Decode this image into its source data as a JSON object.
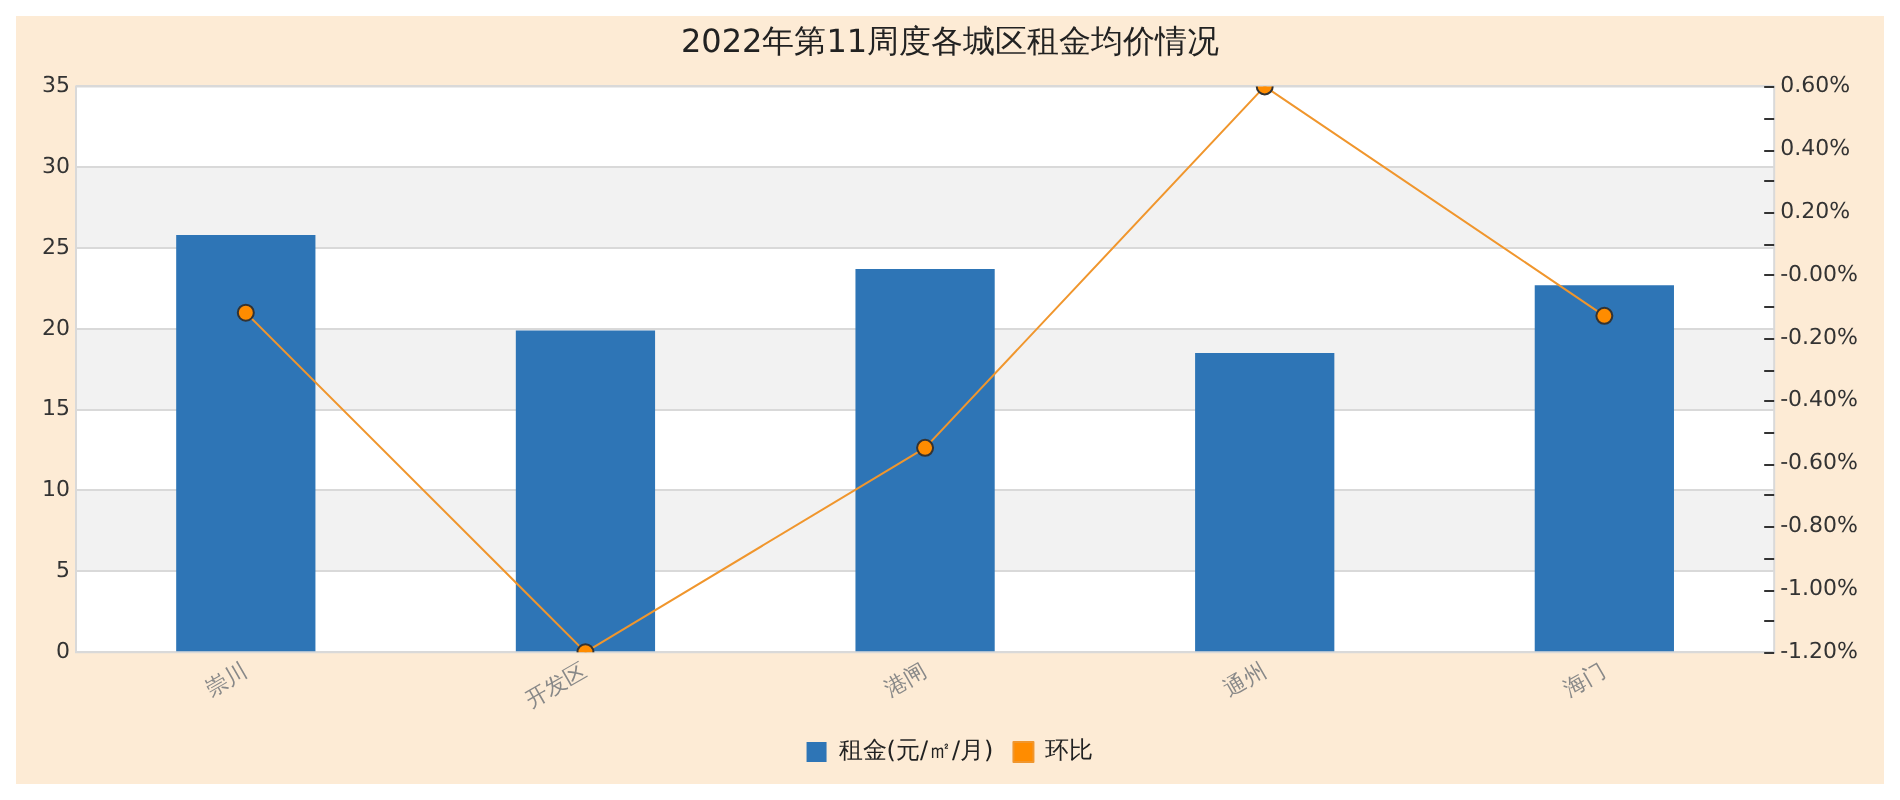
{
  "chart_data": {
    "type": "bar",
    "title": "2022年第11周度各城区租金均价情况",
    "categories": [
      "崇川",
      "开发区",
      "港闸",
      "通州",
      "海门"
    ],
    "series": [
      {
        "name": "租金(元/㎡/月)",
        "color": "#2e75b6",
        "values": [
          25.8,
          19.9,
          23.7,
          18.5,
          22.7
        ]
      },
      {
        "name": "环比",
        "type": "line",
        "axis": "y2",
        "color": "#f0962d",
        "values": [
          -0.12,
          -1.2,
          -0.55,
          0.6,
          -0.13
        ]
      }
    ],
    "ylim": [
      0,
      35
    ],
    "yticks": [
      0,
      5,
      10,
      15,
      20,
      25,
      30,
      35
    ],
    "y2lim": [
      -1.2,
      0.6
    ],
    "y2ticks": [
      {
        "value": -1.2,
        "label": "-1.20%"
      },
      {
        "value": -1.1,
        "label": null
      },
      {
        "value": -1.0,
        "label": "-1.00%"
      },
      {
        "value": -0.9,
        "label": null
      },
      {
        "value": -0.8,
        "label": "-0.80%"
      },
      {
        "value": -0.7,
        "label": null
      },
      {
        "value": -0.6,
        "label": "-0.60%"
      },
      {
        "value": -0.5,
        "label": null
      },
      {
        "value": -0.4,
        "label": "-0.40%"
      },
      {
        "value": -0.3,
        "label": null
      },
      {
        "value": -0.2,
        "label": "-0.20%"
      },
      {
        "value": -0.1,
        "label": null
      },
      {
        "value": 0,
        "label": "-0.00%"
      },
      {
        "value": 0.1,
        "label": null
      },
      {
        "value": 0.2,
        "label": "0.20%"
      },
      {
        "value": 0.3,
        "label": null
      },
      {
        "value": 0.4,
        "label": "0.40%"
      },
      {
        "value": 0.5,
        "label": null
      },
      {
        "value": 0.6,
        "label": "0.60%"
      }
    ],
    "grid": "y",
    "legend": "bottom",
    "marker": "circle",
    "line_style": "solid"
  }
}
